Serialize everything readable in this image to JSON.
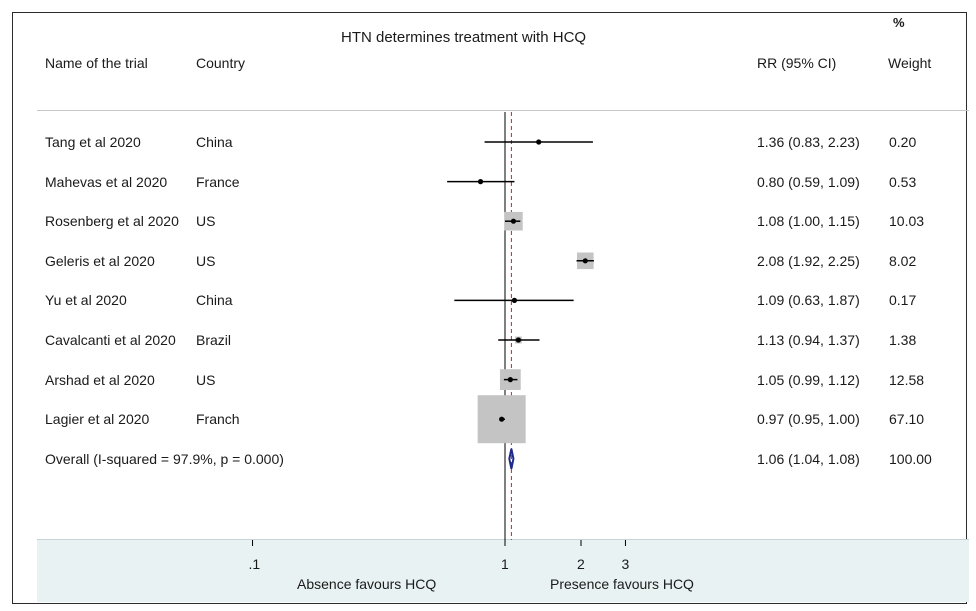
{
  "chart_data": {
    "type": "forest",
    "title": "HTN determines treatment with HCQ",
    "columns": {
      "trial": "Name of the trial",
      "country": "Country",
      "rr": "RR (95% CI)",
      "weight_pct": "%",
      "weight": "Weight"
    },
    "studies": [
      {
        "name": "Tang et al 2020",
        "country": "China",
        "rr": 1.36,
        "lo": 0.83,
        "hi": 2.23,
        "rr_text": "1.36 (0.83, 2.23)",
        "weight": "0.20"
      },
      {
        "name": "Mahevas et al 2020",
        "country": "France",
        "rr": 0.8,
        "lo": 0.59,
        "hi": 1.09,
        "rr_text": "0.80 (0.59, 1.09)",
        "weight": "0.53"
      },
      {
        "name": "Rosenberg et al 2020",
        "country": "US",
        "rr": 1.08,
        "lo": 1.0,
        "hi": 1.15,
        "rr_text": "1.08 (1.00, 1.15)",
        "weight": "10.03"
      },
      {
        "name": "Geleris et al 2020",
        "country": "US",
        "rr": 2.08,
        "lo": 1.92,
        "hi": 2.25,
        "rr_text": "2.08 (1.92, 2.25)",
        "weight": "8.02"
      },
      {
        "name": "Yu et al 2020",
        "country": "China",
        "rr": 1.09,
        "lo": 0.63,
        "hi": 1.87,
        "rr_text": "1.09 (0.63, 1.87)",
        "weight": "0.17"
      },
      {
        "name": "Cavalcanti et al 2020",
        "country": "Brazil",
        "rr": 1.13,
        "lo": 0.94,
        "hi": 1.37,
        "rr_text": "1.13 (0.94, 1.37)",
        "weight": "1.38"
      },
      {
        "name": "Arshad et al 2020",
        "country": "US",
        "rr": 1.05,
        "lo": 0.99,
        "hi": 1.12,
        "rr_text": "1.05 (0.99, 1.12)",
        "weight": "12.58"
      },
      {
        "name": "Lagier et al 2020",
        "country": "Franch",
        "rr": 0.97,
        "lo": 0.95,
        "hi": 1.0,
        "rr_text": "0.97 (0.95, 1.00)",
        "weight": "67.10"
      }
    ],
    "overall": {
      "label": "Overall  (I-squared = 97.9%, p = 0.000)",
      "rr": 1.06,
      "lo": 1.04,
      "hi": 1.08,
      "rr_text": "1.06 (1.04, 1.08)",
      "weight": "100.00"
    },
    "x_scale": "log",
    "xticks": [
      {
        "value": 0.1,
        "label": ".1"
      },
      {
        "value": 1,
        "label": "1"
      },
      {
        "value": 2,
        "label": "2"
      },
      {
        "value": 3,
        "label": "3"
      }
    ],
    "x_left_label": "Absence favours HCQ",
    "x_right_label": "Presence favours HCQ",
    "null_line": 1,
    "colors": {
      "box": "#c4c4c4",
      "overall_diamond": "#1f2a8c",
      "overall_line": "#cc2222",
      "line": "#000000",
      "band": "#e9f2f3"
    }
  }
}
